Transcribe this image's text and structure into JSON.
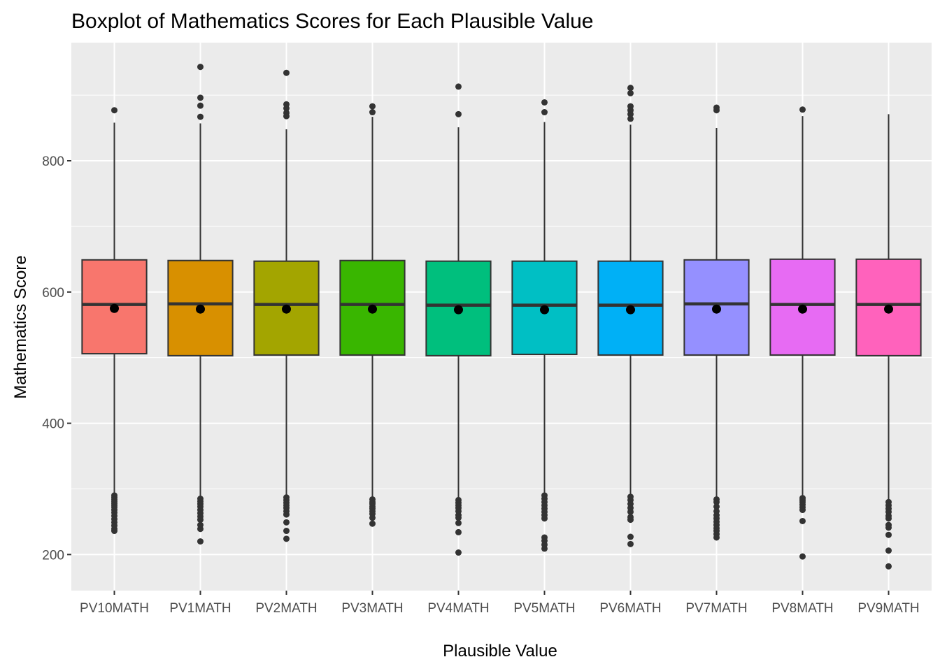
{
  "chart_data": {
    "type": "boxplot",
    "title": "Boxplot of Mathematics Scores for Each Plausible Value",
    "xlabel": "Plausible Value",
    "ylabel": "Mathematics Score",
    "ylim": [
      145,
      980
    ],
    "yticks": [
      200,
      400,
      600,
      800
    ],
    "grid": true,
    "legend": "none",
    "categories": [
      "PV10MATH",
      "PV1MATH",
      "PV2MATH",
      "PV3MATH",
      "PV4MATH",
      "PV5MATH",
      "PV6MATH",
      "PV7MATH",
      "PV8MATH",
      "PV9MATH"
    ],
    "boxes": [
      {
        "q1": 506,
        "median": 581,
        "q3": 649,
        "whisker_low": 293,
        "whisker_high": 858,
        "mean": 575,
        "color": "#F8766D",
        "outliers": [
          877,
          290,
          287,
          284,
          281,
          278,
          275,
          272,
          268,
          264,
          259,
          254,
          249,
          244,
          239,
          236
        ]
      },
      {
        "q1": 503,
        "median": 582,
        "q3": 648,
        "whisker_low": 287,
        "whisker_high": 857,
        "mean": 574,
        "color": "#D89000",
        "outliers": [
          943,
          896,
          884,
          867,
          285,
          281,
          277,
          273,
          268,
          263,
          258,
          253,
          245,
          239,
          220
        ]
      },
      {
        "q1": 504,
        "median": 581,
        "q3": 647,
        "whisker_low": 290,
        "whisker_high": 848,
        "mean": 574,
        "color": "#A3A500",
        "outliers": [
          934,
          886,
          880,
          873,
          868,
          287,
          283,
          279,
          275,
          271,
          266,
          261,
          249,
          236,
          224
        ]
      },
      {
        "q1": 504,
        "median": 581,
        "q3": 648,
        "whisker_low": 286,
        "whisker_high": 867,
        "mean": 574,
        "color": "#39B600",
        "outliers": [
          883,
          874,
          284,
          280,
          277,
          273,
          270,
          266,
          262,
          256,
          247
        ]
      },
      {
        "q1": 503,
        "median": 580,
        "q3": 647,
        "whisker_low": 287,
        "whisker_high": 851,
        "mean": 573,
        "color": "#00BF7D",
        "outliers": [
          913,
          871,
          283,
          279,
          275,
          271,
          266,
          260,
          256,
          248,
          234,
          203
        ]
      },
      {
        "q1": 505,
        "median": 580,
        "q3": 647,
        "whisker_low": 293,
        "whisker_high": 859,
        "mean": 573,
        "color": "#00BFC4",
        "outliers": [
          889,
          874,
          290,
          285,
          280,
          275,
          270,
          265,
          260,
          255,
          226,
          221,
          215,
          209
        ]
      },
      {
        "q1": 504,
        "median": 580,
        "q3": 647,
        "whisker_low": 290,
        "whisker_high": 855,
        "mean": 573,
        "color": "#00B0F6",
        "outliers": [
          911,
          903,
          883,
          877,
          871,
          864,
          288,
          283,
          277,
          271,
          265,
          257,
          253,
          227,
          216
        ]
      },
      {
        "q1": 504,
        "median": 582,
        "q3": 649,
        "whisker_low": 287,
        "whisker_high": 850,
        "mean": 574,
        "color": "#9590FF",
        "outliers": [
          881,
          877,
          284,
          280,
          273,
          266,
          260,
          255,
          250,
          245,
          240,
          236,
          231,
          226
        ]
      },
      {
        "q1": 504,
        "median": 581,
        "q3": 650,
        "whisker_low": 289,
        "whisker_high": 868,
        "mean": 574,
        "color": "#E76BF3",
        "outliers": [
          878,
          286,
          283,
          280,
          276,
          272,
          268,
          251,
          197
        ]
      },
      {
        "q1": 503,
        "median": 581,
        "q3": 650,
        "whisker_low": 283,
        "whisker_high": 871,
        "mean": 574,
        "color": "#FF62BC",
        "outliers": [
          280,
          275,
          270,
          265,
          259,
          255,
          245,
          241,
          230,
          206,
          182
        ]
      }
    ]
  }
}
